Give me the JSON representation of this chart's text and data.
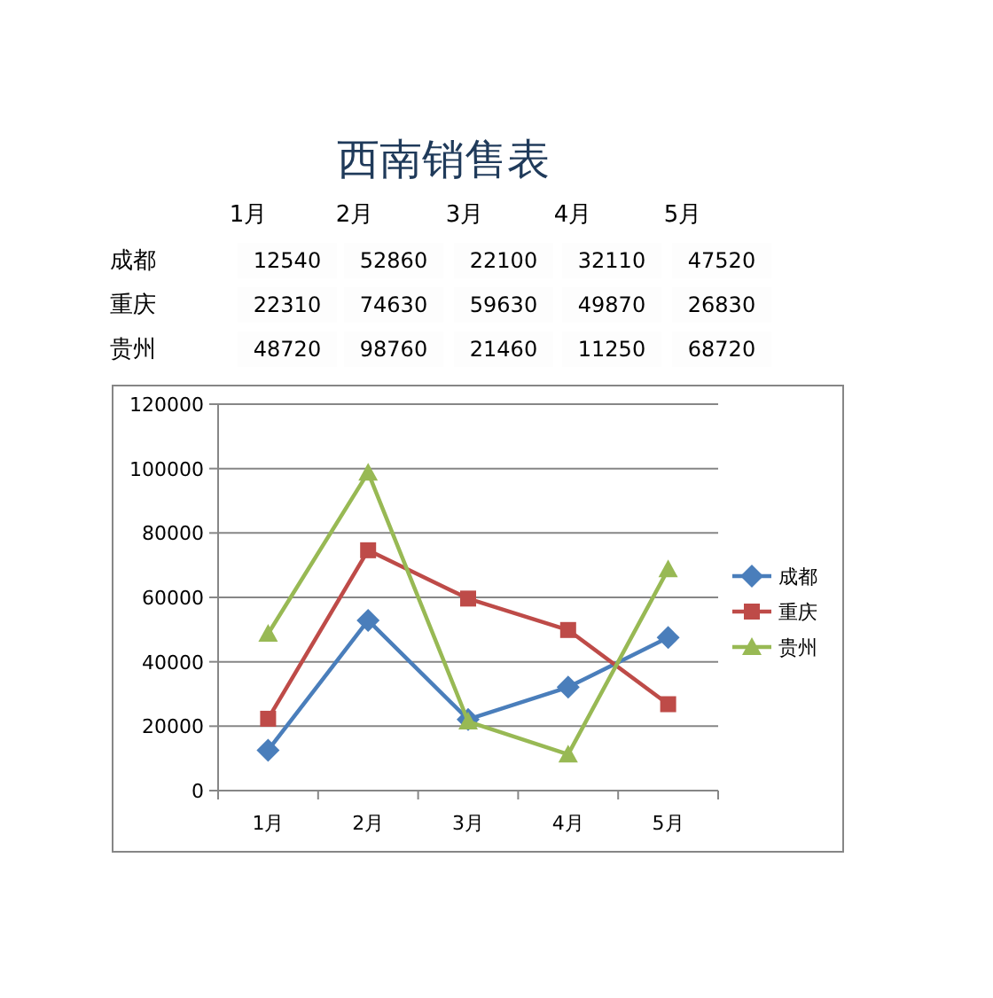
{
  "chart_data": [
    {
      "type": "heatmap",
      "title": "西南销售表",
      "categories": [
        "1月",
        "2月",
        "3月",
        "4月",
        "5月"
      ],
      "y_categories": [
        "成都",
        "重庆",
        "贵州"
      ],
      "cells": [
        [
          12540,
          52860,
          22100,
          32110,
          47520
        ],
        [
          22310,
          74630,
          59630,
          49870,
          26830
        ],
        [
          48720,
          98760,
          21460,
          11250,
          68720
        ]
      ],
      "data_labels": true
    },
    {
      "type": "line",
      "categories": [
        "1月",
        "2月",
        "3月",
        "4月",
        "5月"
      ],
      "series": [
        {
          "name": "成都",
          "color": "#4a7ebb",
          "marker": "diamond",
          "values": [
            12540,
            52860,
            22100,
            32110,
            47520
          ]
        },
        {
          "name": "重庆",
          "color": "#be4b48",
          "marker": "square",
          "values": [
            22310,
            74630,
            59630,
            49870,
            26830
          ]
        },
        {
          "name": "贵州",
          "color": "#98b954",
          "marker": "triangle",
          "values": [
            48720,
            98760,
            21460,
            11250,
            68720
          ]
        }
      ],
      "ylim": [
        0,
        120000
      ],
      "yticks": [
        0,
        20000,
        40000,
        60000,
        80000,
        100000,
        120000
      ],
      "grid": "y",
      "legend": "right"
    }
  ]
}
